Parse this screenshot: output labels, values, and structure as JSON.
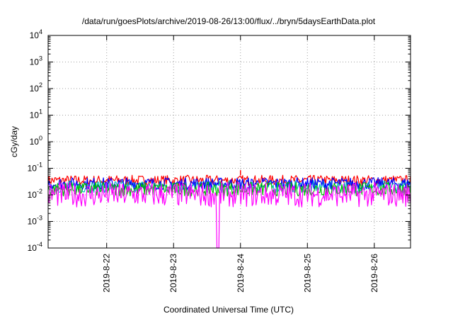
{
  "chart_data": {
    "type": "line",
    "title": "/data/run/goesPlots/archive/2019-08-26/13:00/flux/../bryn/5daysEarthData.plot",
    "xlabel": "Coordinated Universal Time (UTC)",
    "ylabel": "cGy/day",
    "y_scale": "log",
    "ylim": [
      0.0001,
      10000
    ],
    "xlim": [
      "2019-08-21 03:00",
      "2019-08-26 13:00"
    ],
    "x_ticks": [
      "2019-8-22",
      "2019-8-23",
      "2019-8-24",
      "2019-8-25",
      "2019-8-26"
    ],
    "y_ticks": [
      {
        "base": "10",
        "exp": "-4",
        "value": 0.0001
      },
      {
        "base": "10",
        "exp": "-3",
        "value": 0.001
      },
      {
        "base": "10",
        "exp": "-2",
        "value": 0.01
      },
      {
        "base": "10",
        "exp": "-1",
        "value": 0.1
      },
      {
        "base": "10",
        "exp": "0",
        "value": 1
      },
      {
        "base": "10",
        "exp": "1",
        "value": 10
      },
      {
        "base": "10",
        "exp": "2",
        "value": 100
      },
      {
        "base": "10",
        "exp": "3",
        "value": 1000
      },
      {
        "base": "10",
        "exp": "4",
        "value": 10000
      }
    ],
    "grid": true,
    "legend": "none",
    "series": [
      {
        "color": "#ff0000",
        "low": 0.022,
        "high": 0.055,
        "spike": {
          "x": "2019-08-24 00:00",
          "y": 0.085
        }
      },
      {
        "color": "#00bfbf",
        "low": 0.012,
        "high": 0.035
      },
      {
        "color": "#0000ff",
        "low": 0.016,
        "high": 0.045
      },
      {
        "color": "#00c000",
        "low": 0.009,
        "high": 0.03
      },
      {
        "color": "#ff00ff",
        "low": 0.0035,
        "high": 0.03,
        "dip": {
          "x": "2019-08-23 16:00",
          "y": 0.0001
        }
      }
    ]
  }
}
